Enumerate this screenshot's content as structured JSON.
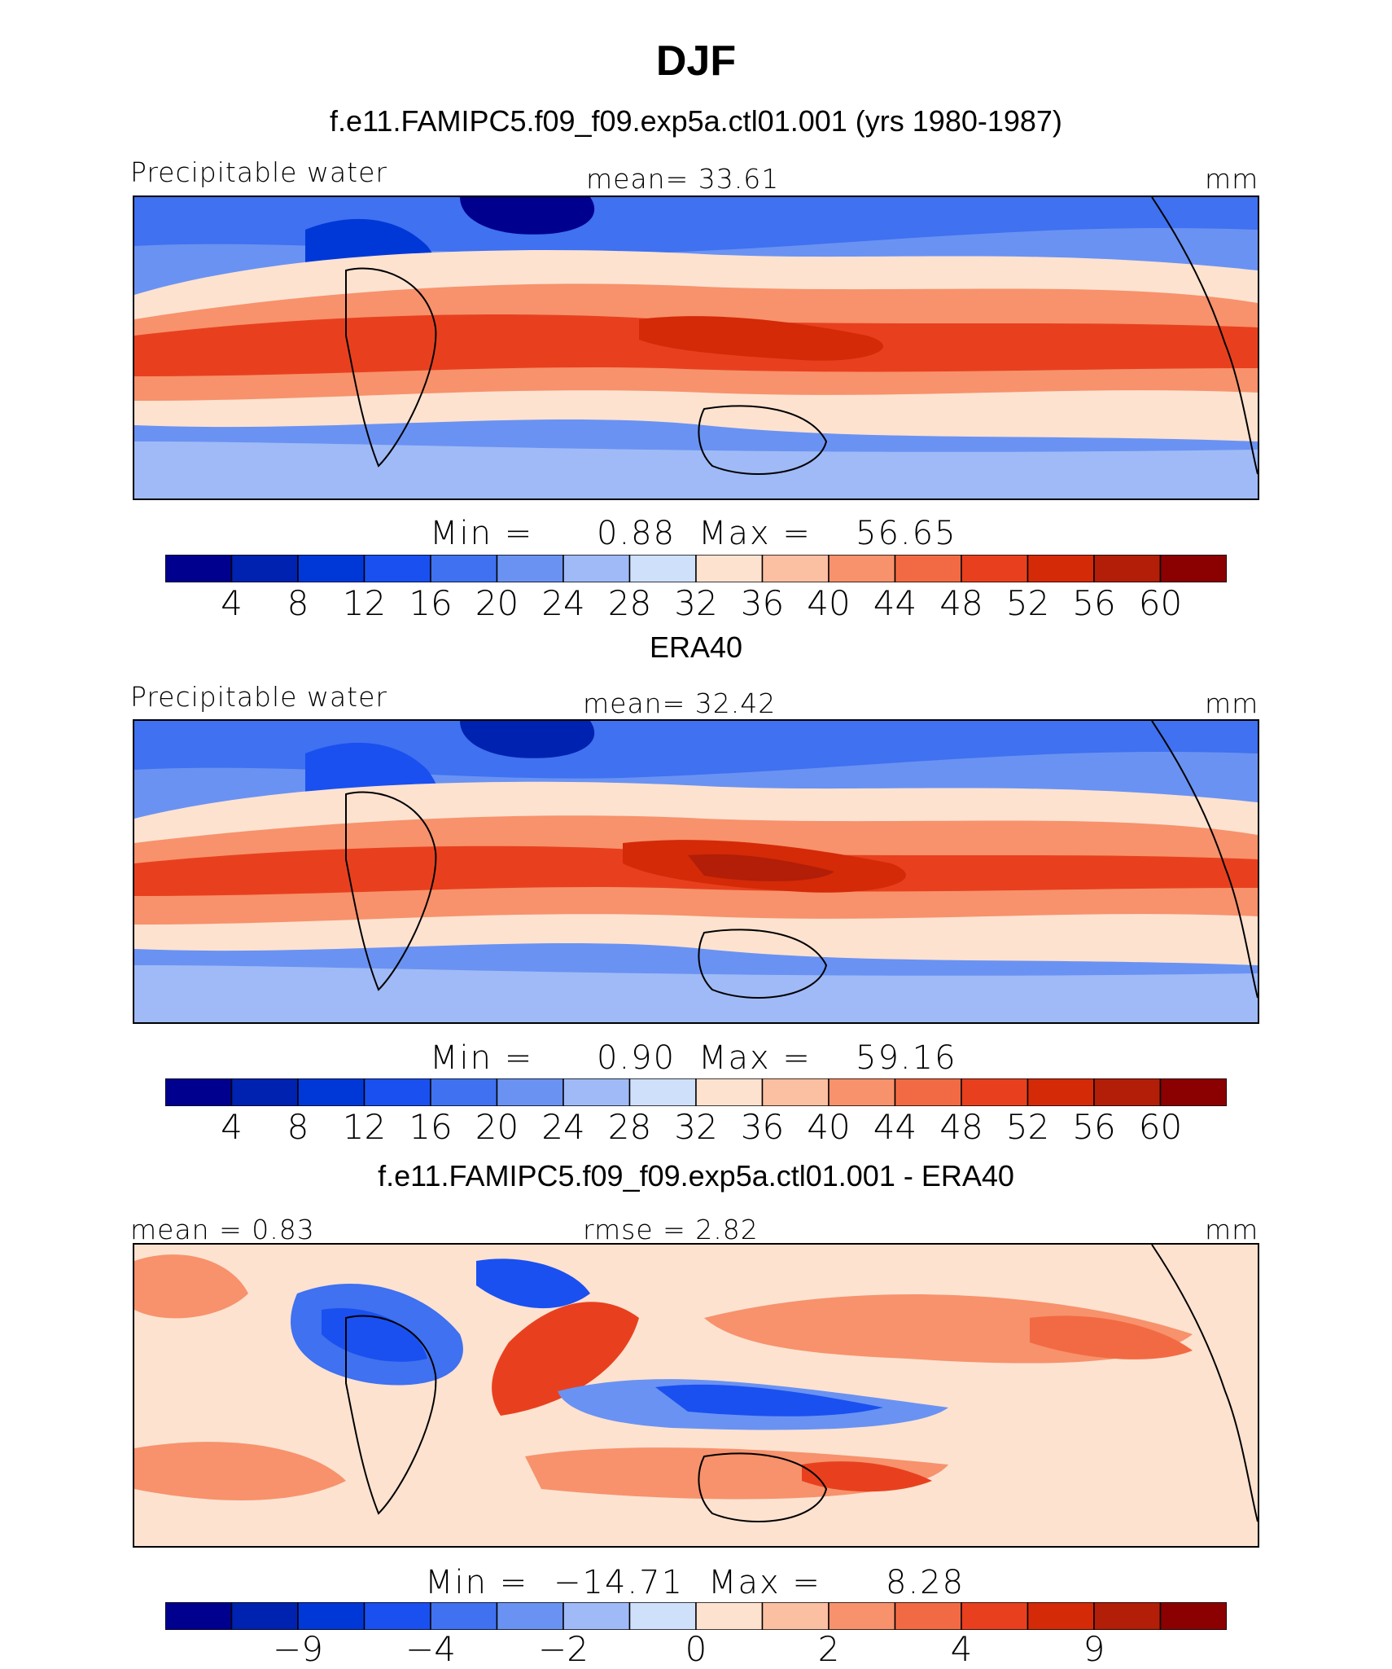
{
  "title": "DJF",
  "colors": {
    "sequential": [
      "#00008f",
      "#0022b0",
      "#0038d8",
      "#1a50f0",
      "#3f71f0",
      "#6a92f2",
      "#9fbaf6",
      "#cfe0fb",
      "#fde2d0",
      "#fbbfa2",
      "#f7926c",
      "#f26a43",
      "#e8401e",
      "#d42a08",
      "#b21e07",
      "#8b0000"
    ],
    "diverging": [
      "#00008f",
      "#0022b0",
      "#0038d8",
      "#1a50f0",
      "#3f71f0",
      "#6a92f2",
      "#9fbaf6",
      "#cfe0fb",
      "#fde2d0",
      "#fbbfa2",
      "#f7926c",
      "#f26a43",
      "#e8401e",
      "#d42a08",
      "#b21e07",
      "#8b0000"
    ]
  },
  "chart_data": [
    {
      "type": "heatmap",
      "panel_title": "f.e11.FAMIPC5.f09_f09.exp5a.ctl01.001 (yrs 1980-1987)",
      "left_label": "Precipitable water",
      "center_label": "mean=   33.61",
      "units": "mm",
      "min_label": "Min  =",
      "min_value": "0.88",
      "max_label": "Max  =",
      "max_value": "56.65",
      "min": 0.88,
      "max": 56.65,
      "mean": 33.61,
      "colorbar_ticks": [
        "4",
        "8",
        "12",
        "16",
        "20",
        "24",
        "28",
        "32",
        "36",
        "40",
        "44",
        "48",
        "52",
        "56",
        "60"
      ],
      "levels": [
        4,
        8,
        12,
        16,
        20,
        24,
        28,
        32,
        36,
        40,
        44,
        48,
        52,
        56,
        60
      ]
    },
    {
      "type": "heatmap",
      "panel_title": "ERA40",
      "left_label": "Precipitable water",
      "center_label": "mean=   32.42",
      "units": "mm",
      "min_label": "Min  =",
      "min_value": "0.90",
      "max_label": "Max  =",
      "max_value": "59.16",
      "min": 0.9,
      "max": 59.16,
      "mean": 32.42,
      "colorbar_ticks": [
        "4",
        "8",
        "12",
        "16",
        "20",
        "24",
        "28",
        "32",
        "36",
        "40",
        "44",
        "48",
        "52",
        "56",
        "60"
      ],
      "levels": [
        4,
        8,
        12,
        16,
        20,
        24,
        28,
        32,
        36,
        40,
        44,
        48,
        52,
        56,
        60
      ]
    },
    {
      "type": "heatmap",
      "panel_title": "f.e11.FAMIPC5.f09_f09.exp5a.ctl01.001 - ERA40",
      "left_label": "mean  =    0.83",
      "center_label": "rmse  =    2.82",
      "units": "mm",
      "min_label": "Min  =",
      "min_value": "−14.71",
      "max_label": "Max  =",
      "max_value": "8.28",
      "min": -14.71,
      "max": 8.28,
      "mean": 0.83,
      "rmse": 2.82,
      "colorbar_ticks": [
        "−9",
        "−4",
        "−2",
        "0",
        "2",
        "4",
        "9"
      ],
      "levels": [
        -9,
        -4,
        -2,
        0,
        2,
        4,
        9
      ]
    }
  ]
}
